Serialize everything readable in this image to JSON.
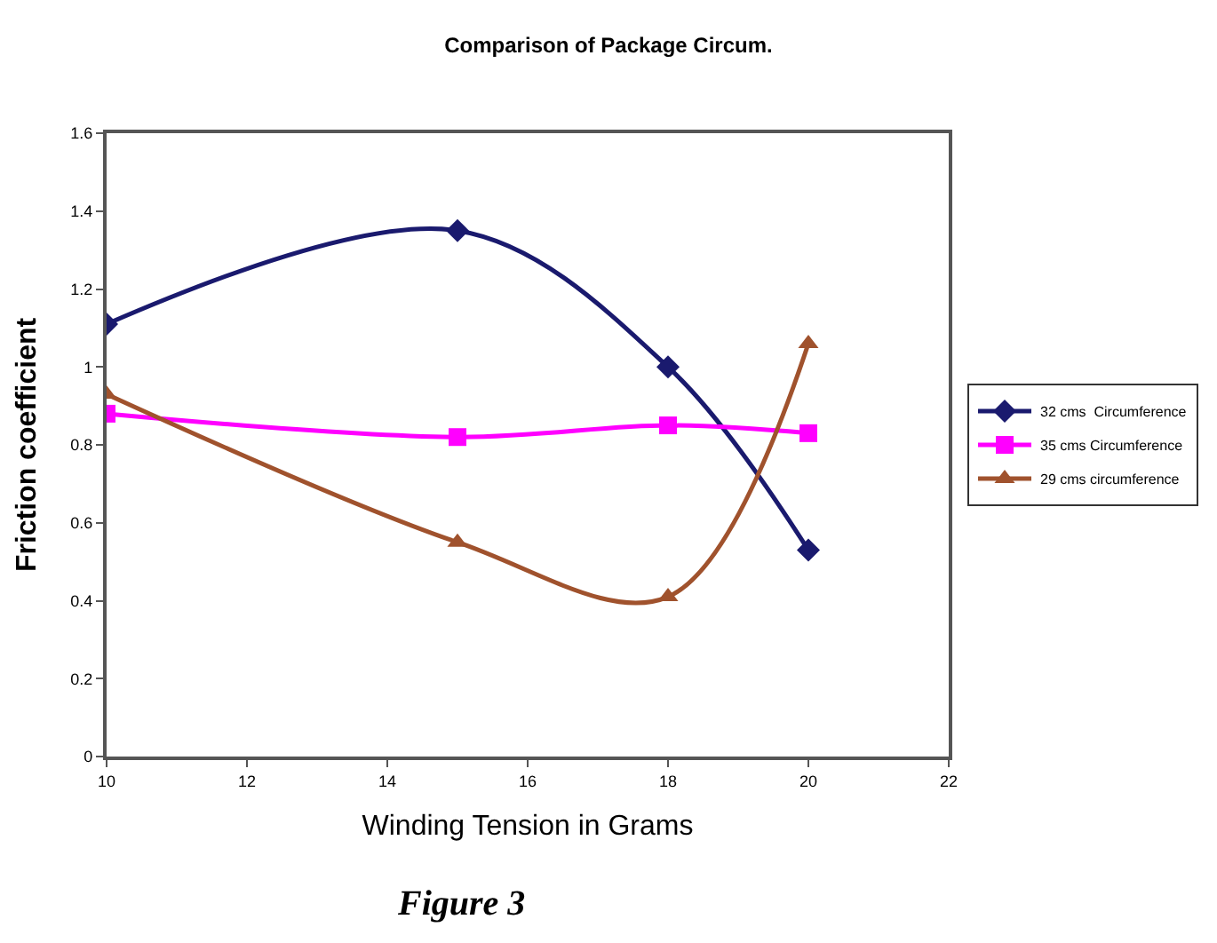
{
  "chart_data": {
    "type": "line",
    "title": "Comparison of Package Circum.",
    "xlabel": "Winding Tension in Grams",
    "ylabel": "Friction coefficient",
    "annotations": [
      "Figure 3"
    ],
    "x": [
      10,
      15,
      18,
      20
    ],
    "series": [
      {
        "name": "32 cms  Circumference",
        "color": "#1a1a6e",
        "marker": "diamond",
        "values": [
          1.11,
          1.35,
          1.0,
          0.53
        ]
      },
      {
        "name": "35 cms Circumference",
        "color": "#ff00ff",
        "marker": "square",
        "values": [
          0.88,
          0.82,
          0.85,
          0.83
        ]
      },
      {
        "name": "29 cms circumference",
        "color": "#a0522d",
        "marker": "triangle",
        "values": [
          0.93,
          0.55,
          0.41,
          1.06
        ]
      }
    ],
    "xlim": [
      10,
      22
    ],
    "xticks": [
      10,
      12,
      14,
      16,
      18,
      20,
      22
    ],
    "ylim": [
      0,
      1.6
    ],
    "yticks": [
      0,
      0.2,
      0.4,
      0.6,
      0.8,
      1,
      1.2,
      1.4,
      1.6
    ],
    "grid": false,
    "legend": "right",
    "line_style": "solid"
  }
}
